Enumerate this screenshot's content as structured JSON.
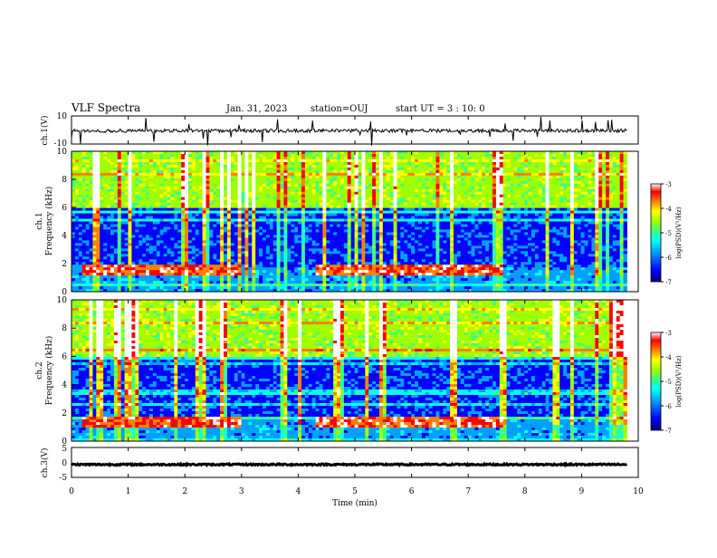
{
  "header": {
    "title": "VLF Spectra",
    "date": "Jan. 31, 2023",
    "station": "station=OUJ",
    "start_ut": "start UT =  3 : 10: 0"
  },
  "colormap_colors": [
    "#000080",
    "#0000ff",
    "#00a0ff",
    "#00ffff",
    "#40ff80",
    "#a0ff00",
    "#ffff00",
    "#ff8000",
    "#ff0000",
    "#ffffff"
  ],
  "chart_data": [
    {
      "type": "line",
      "name": "ch1-waveform",
      "ylabel": "ch.1(V)",
      "ylim": [
        -10,
        10
      ],
      "yticks": [
        "10",
        "-10"
      ],
      "xlim": [
        0,
        10
      ],
      "baseline": -0.5
    },
    {
      "type": "heatmap",
      "name": "ch1-spectrogram",
      "ylabel_line1": "ch.1",
      "ylabel_line2": "Frequency (kHz)",
      "ylim": [
        0,
        10
      ],
      "yticks": [
        "0",
        "2",
        "4",
        "6",
        "8",
        "10"
      ],
      "xlim": [
        0,
        10
      ],
      "colorbar": {
        "label": "log(PSD)(V²/Hz)",
        "range": [
          -7,
          -3
        ],
        "ticks": [
          "-3",
          "-4",
          "-5",
          "-6",
          "-7"
        ]
      },
      "features": {
        "strong_band_khz": 1.5,
        "strong_band_time_min": [
          [
            0.2,
            3.0
          ],
          [
            4.3,
            7.6
          ]
        ],
        "dark_band_khz": [
          1.8,
          5.8
        ],
        "bright_above_khz": 6.0
      }
    },
    {
      "type": "heatmap",
      "name": "ch2-spectrogram",
      "ylabel_line1": "ch.2",
      "ylabel_line2": "Frequency (kHz)",
      "ylim": [
        0,
        10
      ],
      "yticks": [
        "0",
        "2",
        "4",
        "6",
        "8",
        "10"
      ],
      "xlim": [
        0,
        10
      ],
      "colorbar": {
        "label": "log(PSD)(V²/Hz)",
        "range": [
          -7,
          -3
        ],
        "ticks": [
          "-3",
          "-4",
          "-5",
          "-6",
          "-7"
        ]
      },
      "features": {
        "strong_band_khz": 1.3,
        "strong_band_time_min": [
          [
            0.2,
            3.0
          ],
          [
            4.3,
            7.6
          ]
        ],
        "dark_band_khz": [
          1.8,
          5.8
        ],
        "bright_above_khz": 6.0
      }
    },
    {
      "type": "line",
      "name": "ch3-waveform",
      "ylabel": "ch.3(V)",
      "ylim": [
        -5,
        5
      ],
      "yticks": [
        "5",
        "0",
        "-5"
      ],
      "xlim": [
        0,
        10
      ],
      "baseline": -0.7
    }
  ],
  "xaxis": {
    "label": "Time (min)",
    "ticks": [
      "0",
      "1",
      "2",
      "3",
      "4",
      "5",
      "6",
      "7",
      "8",
      "9",
      "10"
    ]
  }
}
